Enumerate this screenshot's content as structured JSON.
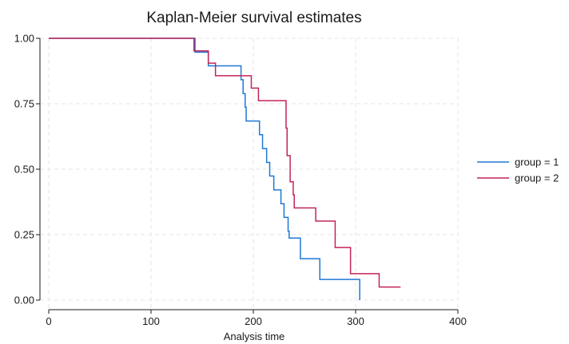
{
  "chart_data": {
    "type": "line",
    "title": "Kaplan-Meier survival estimates",
    "xlabel": "Analysis time",
    "ylabel": "",
    "xlim": [
      0,
      400
    ],
    "ylim": [
      0,
      1
    ],
    "xticks": [
      "0",
      "100",
      "200",
      "300",
      "400"
    ],
    "yticks": [
      "0.00",
      "0.25",
      "0.50",
      "0.75",
      "1.00"
    ],
    "grid": true,
    "legend_position": "right",
    "series": [
      {
        "name": "group = 1",
        "color": "#1f78d6",
        "steps": [
          [
            0,
            1.0
          ],
          [
            143,
            0.947
          ],
          [
            156,
            0.895
          ],
          [
            188,
            0.842
          ],
          [
            190,
            0.789
          ],
          [
            192,
            0.737
          ],
          [
            193,
            0.684
          ],
          [
            206,
            0.632
          ],
          [
            209,
            0.579
          ],
          [
            213,
            0.526
          ],
          [
            216,
            0.474
          ],
          [
            220,
            0.421
          ],
          [
            227,
            0.368
          ],
          [
            230,
            0.316
          ],
          [
            234,
            0.263
          ],
          [
            235,
            0.237
          ],
          [
            246,
            0.158
          ],
          [
            265,
            0.079
          ],
          [
            304,
            0.0
          ]
        ]
      },
      {
        "name": "group = 2",
        "color": "#c4245a",
        "steps": [
          [
            0,
            1.0
          ],
          [
            142,
            0.952
          ],
          [
            156,
            0.905
          ],
          [
            163,
            0.857
          ],
          [
            198,
            0.81
          ],
          [
            205,
            0.762
          ],
          [
            232,
            0.657
          ],
          [
            233,
            0.552
          ],
          [
            236,
            0.452
          ],
          [
            239,
            0.402
          ],
          [
            240,
            0.352
          ],
          [
            261,
            0.302
          ],
          [
            280,
            0.201
          ],
          [
            295,
            0.101
          ],
          [
            323,
            0.05
          ]
        ],
        "end_x": 344
      }
    ]
  }
}
